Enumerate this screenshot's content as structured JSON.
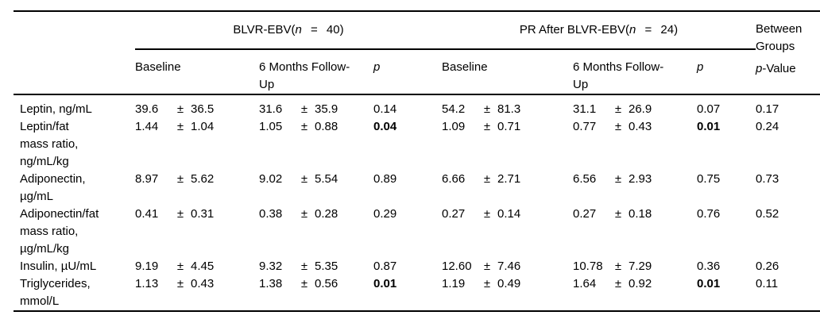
{
  "table": {
    "pm_symbol": "±",
    "groups": [
      {
        "prefix": "BLVR-EBV(",
        "n_var": "n",
        "suffix": " = 40)"
      },
      {
        "prefix": "PR After BLVR-EBV(",
        "n_var": "n",
        "suffix": " = 24)"
      }
    ],
    "between_groups": {
      "title": "Between Groups",
      "p_italic": "p",
      "p_rest": "-Value"
    },
    "col_headers": {
      "baseline": "Baseline",
      "followup": "6 Months Follow-Up",
      "p": "p"
    },
    "rows": [
      {
        "label": "Leptin, ng/mL",
        "g1_baseline": {
          "mean": "39.6",
          "sd": "36.5"
        },
        "g1_followup": {
          "mean": "31.6",
          "sd": "35.9"
        },
        "g1_p": {
          "value": "0.14",
          "bold": false
        },
        "g2_baseline": {
          "mean": "54.2",
          "sd": "81.3"
        },
        "g2_followup": {
          "mean": "31.1",
          "sd": "26.9"
        },
        "g2_p": {
          "value": "0.07",
          "bold": false
        },
        "between_p": "0.17"
      },
      {
        "label": "Leptin/fat mass ratio, ng/mL/kg",
        "g1_baseline": {
          "mean": "1.44",
          "sd": "1.04"
        },
        "g1_followup": {
          "mean": "1.05",
          "sd": "0.88"
        },
        "g1_p": {
          "value": "0.04",
          "bold": true
        },
        "g2_baseline": {
          "mean": "1.09",
          "sd": "0.71"
        },
        "g2_followup": {
          "mean": "0.77",
          "sd": "0.43"
        },
        "g2_p": {
          "value": "0.01",
          "bold": true
        },
        "between_p": "0.24"
      },
      {
        "label": "Adiponectin, µg/mL",
        "g1_baseline": {
          "mean": "8.97",
          "sd": "5.62"
        },
        "g1_followup": {
          "mean": "9.02",
          "sd": "5.54"
        },
        "g1_p": {
          "value": "0.89",
          "bold": false
        },
        "g2_baseline": {
          "mean": "6.66",
          "sd": "2.71"
        },
        "g2_followup": {
          "mean": "6.56",
          "sd": "2.93"
        },
        "g2_p": {
          "value": "0.75",
          "bold": false
        },
        "between_p": "0.73"
      },
      {
        "label": "Adiponectin/fat mass ratio, µg/mL/kg",
        "g1_baseline": {
          "mean": "0.41",
          "sd": "0.31"
        },
        "g1_followup": {
          "mean": "0.38",
          "sd": "0.28"
        },
        "g1_p": {
          "value": "0.29",
          "bold": false
        },
        "g2_baseline": {
          "mean": "0.27",
          "sd": "0.14"
        },
        "g2_followup": {
          "mean": "0.27",
          "sd": "0.18"
        },
        "g2_p": {
          "value": "0.76",
          "bold": false
        },
        "between_p": "0.52"
      },
      {
        "label": "Insulin, µU/mL",
        "g1_baseline": {
          "mean": "9.19",
          "sd": "4.45"
        },
        "g1_followup": {
          "mean": "9.32",
          "sd": "5.35"
        },
        "g1_p": {
          "value": "0.87",
          "bold": false
        },
        "g2_baseline": {
          "mean": "12.60",
          "sd": "7.46"
        },
        "g2_followup": {
          "mean": "10.78",
          "sd": "7.29"
        },
        "g2_p": {
          "value": "0.36",
          "bold": false
        },
        "between_p": "0.26"
      },
      {
        "label": "Triglycerides, mmol/L",
        "g1_baseline": {
          "mean": "1.13",
          "sd": "0.43"
        },
        "g1_followup": {
          "mean": "1.38",
          "sd": "0.56"
        },
        "g1_p": {
          "value": "0.01",
          "bold": true
        },
        "g2_baseline": {
          "mean": "1.19",
          "sd": "0.49"
        },
        "g2_followup": {
          "mean": "1.64",
          "sd": "0.92"
        },
        "g2_p": {
          "value": "0.01",
          "bold": true
        },
        "between_p": "0.11"
      }
    ]
  }
}
